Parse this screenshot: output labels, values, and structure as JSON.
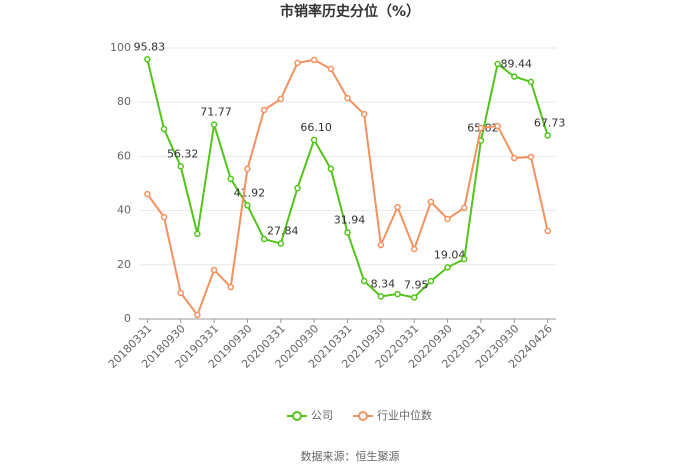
{
  "chart_data": {
    "type": "line",
    "title": "市销率历史分位（%）",
    "categories": [
      "20180331",
      null,
      "20180930",
      null,
      "20190331",
      null,
      "20190930",
      null,
      "20200331",
      null,
      "20200930",
      null,
      "20210331",
      null,
      "20210930",
      null,
      "20220331",
      null,
      "20220930",
      null,
      "20230331",
      null,
      "20230930",
      null,
      "20240426"
    ],
    "series": [
      {
        "name": "公司",
        "color": "#52c41a",
        "values": [
          95.83,
          70.1,
          56.32,
          31.4,
          71.77,
          51.7,
          41.92,
          29.5,
          27.84,
          48.3,
          66.1,
          55.4,
          31.94,
          14.0,
          8.34,
          9.2,
          7.95,
          14.0,
          19.04,
          22.1,
          65.82,
          94.1,
          89.44,
          87.5,
          67.73
        ],
        "value_labels": [
          "95.83",
          null,
          "56.32",
          null,
          "71.77",
          null,
          "41.92",
          null,
          "27.84",
          null,
          "66.10",
          null,
          "31.94",
          null,
          "8.34",
          null,
          "7.95",
          null,
          "19.04",
          null,
          "65.82",
          null,
          "89.44",
          null,
          "67.73"
        ]
      },
      {
        "name": "行业中位数",
        "color": "#f4925f",
        "values": [
          46.1,
          37.6,
          9.6,
          1.5,
          18.1,
          11.8,
          55.4,
          77.1,
          81.2,
          94.5,
          95.6,
          92.3,
          81.5,
          75.6,
          27.3,
          41.3,
          25.8,
          43.2,
          36.9,
          41.0,
          70.5,
          71.2,
          59.4,
          59.8,
          32.5
        ]
      }
    ],
    "ylim": [
      0,
      100
    ],
    "yticks": [
      0,
      20,
      40,
      60,
      80,
      100
    ],
    "grid": true,
    "source": "数据来源：恒生聚源"
  }
}
